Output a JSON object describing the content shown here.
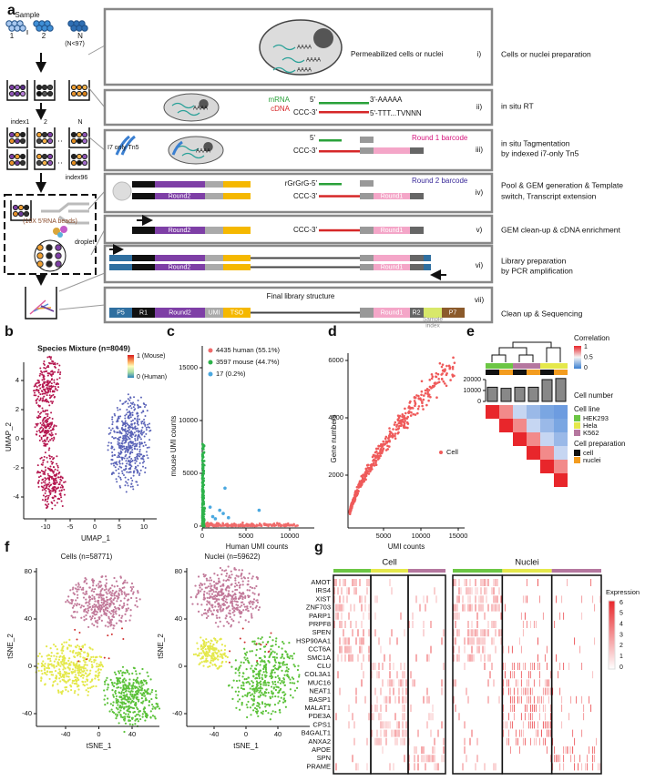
{
  "panels": {
    "a": {
      "label": "a",
      "sample": {
        "title": "Sample",
        "labels": [
          "1",
          "2",
          "N"
        ],
        "note": "(N<97)"
      },
      "plates": {
        "labels": [
          "index1",
          "2",
          "N"
        ],
        "last": "index96"
      },
      "beads": "(10X 5'RNA beads)",
      "droplet": "droplet",
      "steps": [
        {
          "number": "i)",
          "labels": [
            "AAAA",
            "AAAA",
            "AAAA",
            "Permeabilized cells or nuclei"
          ],
          "description": [
            "Cells or nuclei preparation"
          ]
        },
        {
          "number": "ii)",
          "labels": [
            "AAAA",
            "mRNA",
            "cDNA",
            "5'",
            "3'-AAAAA",
            "CCC-3'",
            "5'-TTT...TVNNN"
          ],
          "description": [
            "in situ RT"
          ]
        },
        {
          "number": "iii)",
          "labels": [
            "I7 only Tn5",
            "AAAA",
            "5'",
            "CCC-3'",
            "Round 1 barcode"
          ],
          "description": [
            "in situ Tagmentation",
            "by indexed i7-only Tn5"
          ]
        },
        {
          "number": "iv)",
          "labels": [
            "Round2",
            "rGrGrG-5'",
            "CCC-3'",
            "Round1",
            "Round 2 barcode"
          ],
          "description": [
            "Pool & GEM generation & Template",
            "switch, Transcript extension"
          ]
        },
        {
          "number": "v)",
          "labels": [
            "Round2",
            "CCC-3'",
            "Round1"
          ],
          "description": [
            "GEM clean-up & cDNA enrichment"
          ]
        },
        {
          "number": "vi)",
          "labels": [
            "Round2",
            "Round1"
          ],
          "description": [
            "Library preparation",
            "by PCR amplification"
          ]
        },
        {
          "number": "vii)",
          "labels": [
            "Final library structure",
            "P5",
            "R1",
            "Round2",
            "UMI",
            "TSO",
            "Round1",
            "R2",
            "Sample",
            "index",
            "P7"
          ],
          "description": [
            "Clean up & Sequencing"
          ]
        }
      ]
    },
    "b": {
      "label": "b",
      "title": "Species Mixture (n=8049)",
      "colorbar": [
        "1 (Mouse)",
        "0 (Human)"
      ],
      "xlabel": "UMAP_1",
      "ylabel": "UMAP_2",
      "xticks": [
        -10,
        -5,
        0,
        5,
        10
      ],
      "yticks": [
        4,
        2,
        0,
        -2,
        -4
      ]
    },
    "c": {
      "label": "c",
      "xlabel": "Human UMI counts",
      "ylabel": "mouse UMI counts",
      "xticks": [
        0,
        5000,
        10000
      ],
      "yticks": [
        0,
        5000,
        10000,
        15000
      ],
      "legend": [
        {
          "name": "4435 human (55.1%)",
          "color": "#ef6a6a"
        },
        {
          "name": "3597 mouse (44.7%)",
          "color": "#2db24a"
        },
        {
          "name": "17 (0.2%)",
          "color": "#4aa8e0"
        }
      ]
    },
    "d": {
      "label": "d",
      "xlabel": "UMI counts",
      "ylabel": "Gene numbers",
      "xticks": [
        5000,
        10000,
        15000
      ],
      "yticks": [
        2000,
        4000,
        6000
      ],
      "legend": "Cell",
      "color": "#ef5a5a"
    },
    "e": {
      "label": "e",
      "correlation": {
        "title": "Correlation",
        "ticks": [
          1,
          0.5,
          0
        ]
      },
      "cell_number": {
        "title": "Cell number",
        "ticks": [
          20000,
          10000,
          0
        ],
        "values": [
          13000,
          12000,
          13000,
          13000,
          20000,
          21000
        ]
      },
      "cell_line": {
        "title": "Cell line",
        "items": [
          {
            "name": "HEK293",
            "color": "#6cc644"
          },
          {
            "name": "Hela",
            "color": "#e5e84b"
          },
          {
            "name": "K562",
            "color": "#b5779f"
          }
        ]
      },
      "cell_preparation": {
        "title": "Cell preparation",
        "items": [
          {
            "name": "cell",
            "color": "#111111"
          },
          {
            "name": "nuclei",
            "color": "#f39c1f"
          }
        ]
      }
    },
    "f": {
      "label": "f",
      "plots": [
        {
          "title": "Cells (n=58771)"
        },
        {
          "title": "Nuclei (n=59622)"
        }
      ],
      "xlabel": "tSNE_1",
      "ylabel": "tSNE_2",
      "xticks": [
        -40,
        0,
        40
      ],
      "yticks": [
        80,
        40,
        0,
        -40
      ]
    },
    "g": {
      "label": "g",
      "groups": [
        "Cell",
        "Nuclei"
      ],
      "genes": [
        "AMOT",
        "IRS4",
        "XIST",
        "ZNF703",
        "PARP1",
        "PRPF8",
        "SPEN",
        "HSP90AA1",
        "CCT6A",
        "SMC1A",
        "CLU",
        "COL3A1",
        "MUC16",
        "NEAT1",
        "BASP1",
        "MALAT1",
        "PDE3A",
        "CPS1",
        "B4GALT1",
        "ANXA2",
        "APOE",
        "SPN",
        "PRAME"
      ],
      "legend": {
        "title": "Expression",
        "ticks": [
          6,
          5,
          4,
          3,
          2,
          1,
          0
        ]
      }
    }
  }
}
